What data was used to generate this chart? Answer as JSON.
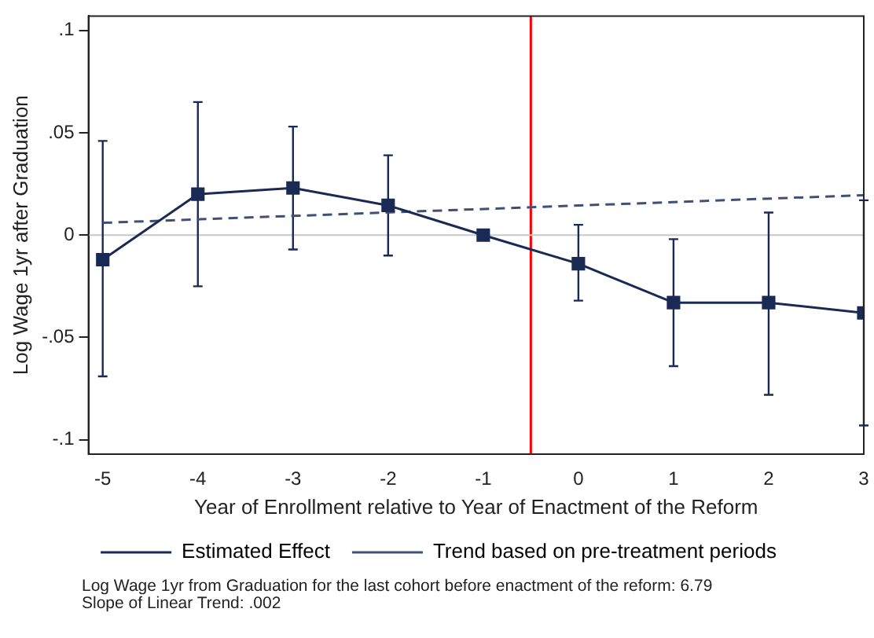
{
  "chart_data": {
    "type": "line",
    "xlabel": "Year of Enrollment relative to Year of Enactment of the Reform",
    "ylabel": "Log Wage 1yr after Graduation",
    "xlim": [
      -5.15,
      3
    ],
    "xticks": [
      -5,
      -4,
      -3,
      -2,
      -1,
      0,
      1,
      2,
      3
    ],
    "ylim": [
      -0.107,
      0.107
    ],
    "yticks": [
      {
        "value": -0.1,
        "label": "-.1"
      },
      {
        "value": -0.05,
        "label": "-.05"
      },
      {
        "value": 0,
        "label": "0"
      },
      {
        "value": 0.05,
        "label": ".05"
      },
      {
        "value": 0.1,
        "label": ".1"
      }
    ],
    "grid": false,
    "legend": "bottom",
    "series": [
      {
        "name": "Estimated Effect",
        "color": "#1a2a55",
        "marker": "square",
        "line_style": "solid",
        "x": [
          -5,
          -4,
          -3,
          -2,
          -1,
          0,
          1,
          2,
          3
        ],
        "values": [
          -0.012,
          0.02,
          0.023,
          0.0145,
          0,
          -0.014,
          -0.033,
          -0.033,
          -0.038
        ],
        "errors": [
          [
            -0.069,
            0.046
          ],
          [
            -0.025,
            0.065
          ],
          [
            -0.007,
            0.053
          ],
          [
            -0.01,
            0.039
          ],
          null,
          [
            -0.032,
            0.005
          ],
          [
            -0.064,
            -0.002
          ],
          [
            -0.078,
            0.011
          ],
          [
            -0.093,
            0.017
          ]
        ]
      },
      {
        "name": "Trend based on pre-treatment periods",
        "color": "#3f4f75",
        "marker": "none",
        "line_style": "dashed",
        "x": [
          -5,
          3
        ],
        "values": [
          0.006,
          0.0195
        ]
      }
    ],
    "ref_lines": [
      {
        "axis": "x",
        "value": -0.5,
        "color": "#ff0000",
        "line_style": "solid"
      },
      {
        "axis": "y",
        "value": 0,
        "color": "#c8c8c8",
        "line_style": "solid"
      }
    ],
    "annotations": [
      "Log Wage 1yr from Graduation for the last cohort before enactment of the reform: 6.79",
      "Slope of Linear Trend: .002"
    ]
  }
}
